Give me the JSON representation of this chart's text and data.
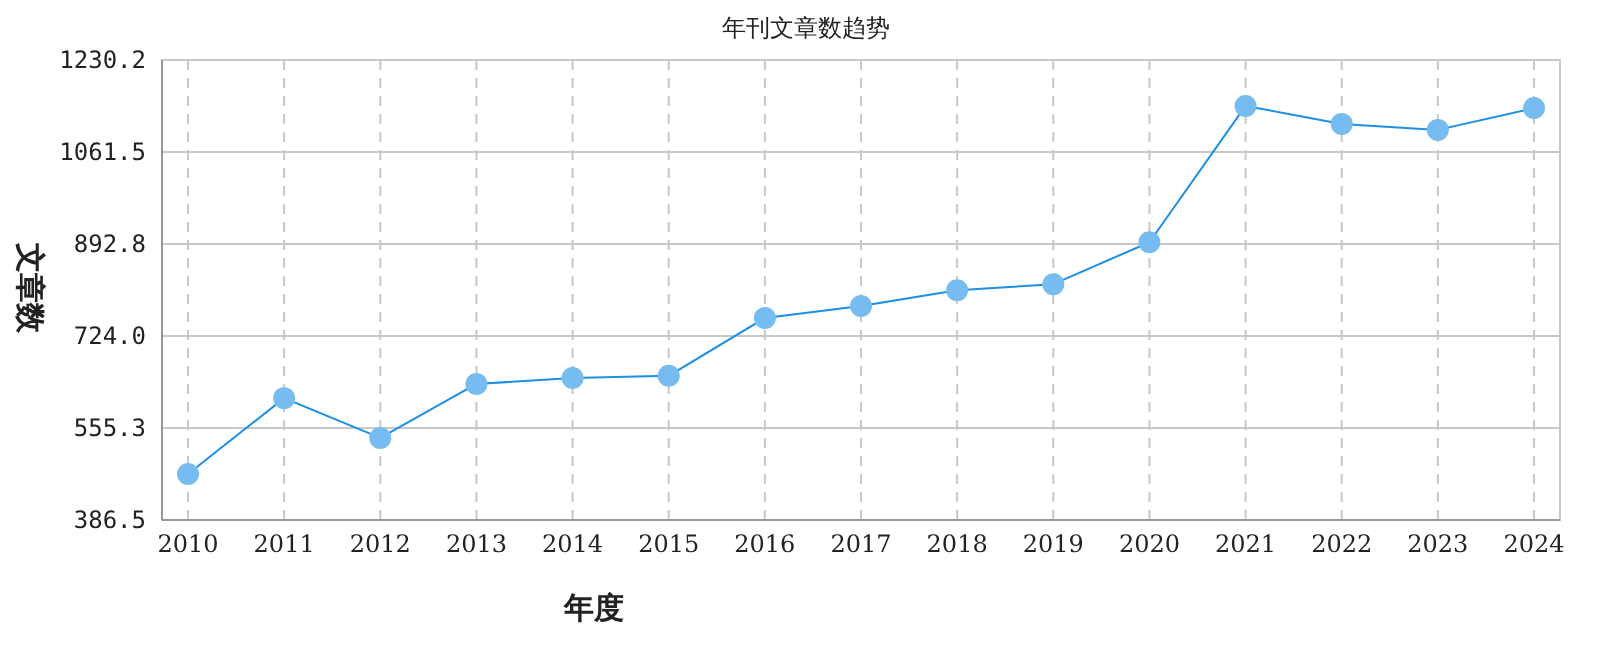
{
  "chart_data": {
    "type": "line",
    "title": "年刊文章数趋势",
    "xlabel": "年度",
    "ylabel": "文章数",
    "categories": [
      "2010",
      "2011",
      "2012",
      "2013",
      "2014",
      "2015",
      "2016",
      "2017",
      "2018",
      "2019",
      "2020",
      "2021",
      "2022",
      "2023",
      "2024"
    ],
    "series": [
      {
        "color": "#1a8fe8",
        "values": [
          471,
          610,
          537,
          636,
          647,
          651,
          757,
          779,
          808,
          819,
          896,
          1146,
          1113,
          1102,
          1142
        ]
      }
    ],
    "ylim": [
      386.5,
      1230.2
    ],
    "yticks": [
      {
        "value": 386.5,
        "label": "386.5"
      },
      {
        "value": 555.3,
        "label": "555.3"
      },
      {
        "value": 724,
        "label": "724.0"
      },
      {
        "value": 892.8,
        "label": "892.8"
      },
      {
        "value": 1061.5,
        "label": "1061.5"
      },
      {
        "value": 1230.2,
        "label": "1230.2"
      }
    ],
    "grid": true,
    "marker": "circle",
    "line_style": "solid"
  }
}
